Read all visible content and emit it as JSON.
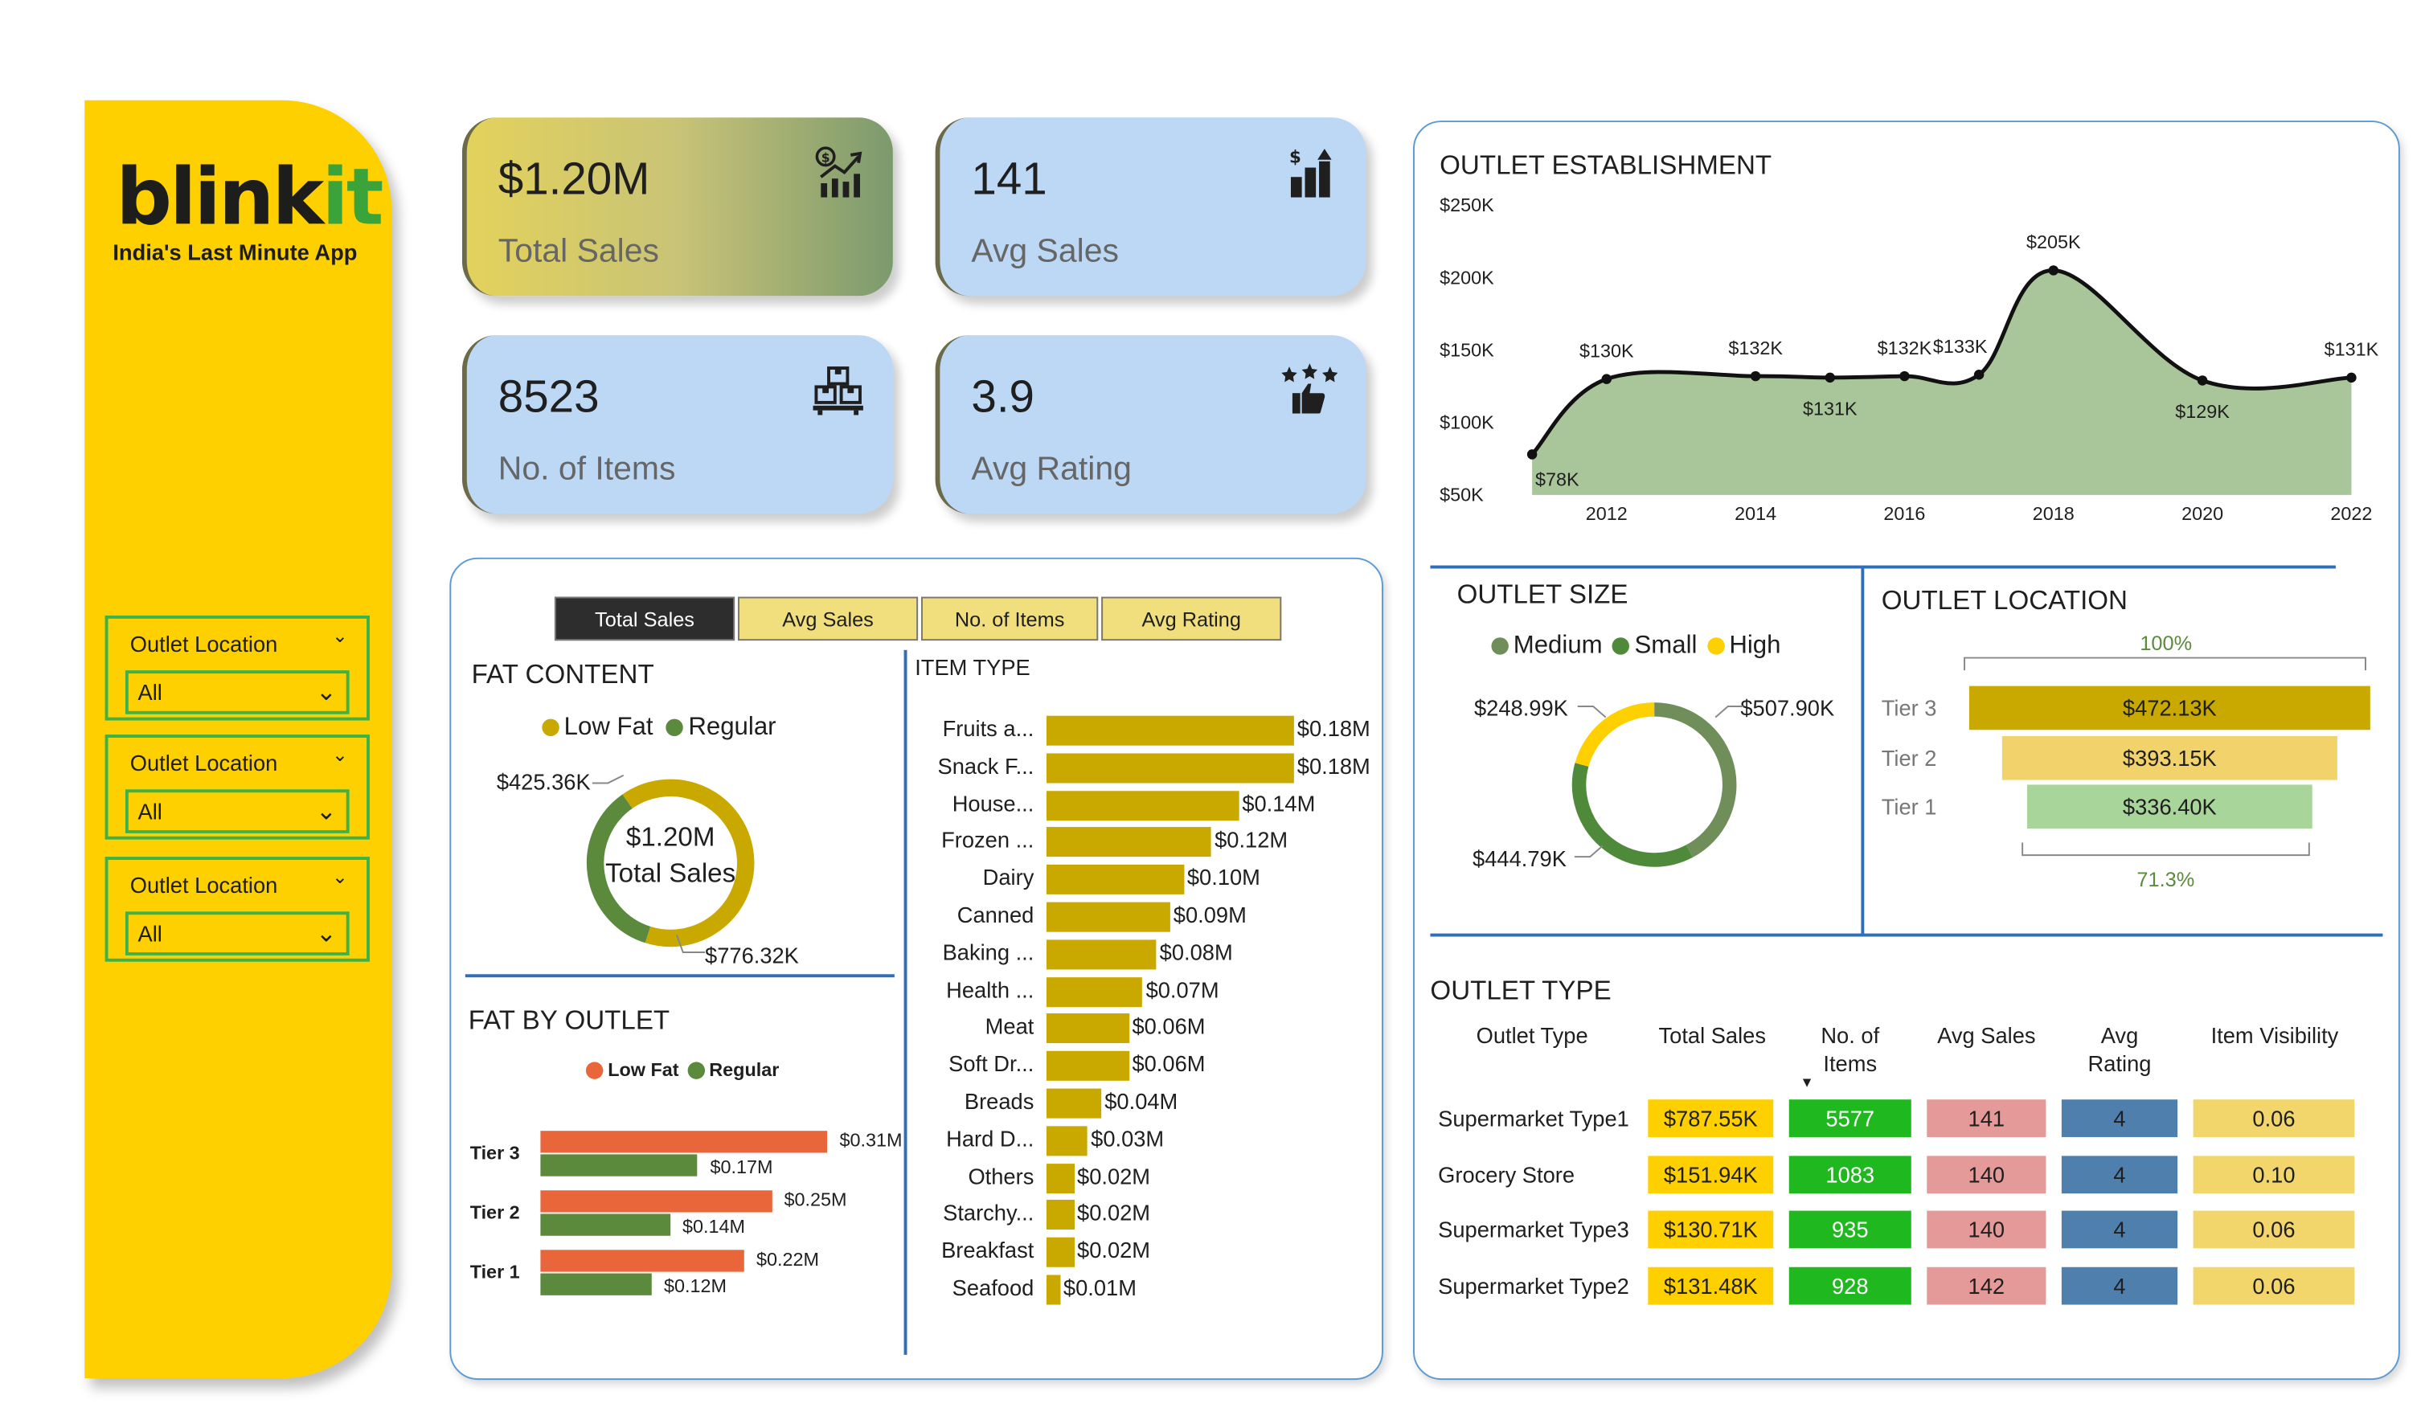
{
  "brand": {
    "logo_text_dark": "blink",
    "logo_text_green": "it",
    "tagline": "India's Last Minute App"
  },
  "slicers": [
    {
      "title": "Outlet Location",
      "value": "All"
    },
    {
      "title": "Outlet Location",
      "value": "All"
    },
    {
      "title": "Outlet Location",
      "value": "All"
    }
  ],
  "kpis": {
    "total_sales": {
      "value": "$1.20M",
      "label": "Total Sales",
      "icon": "sales-chart-icon"
    },
    "avg_sales": {
      "value": "141",
      "label": "Avg Sales",
      "icon": "growth-bars-icon"
    },
    "items": {
      "value": "8523",
      "label": "No. of Items",
      "icon": "boxes-icon"
    },
    "avg_rating": {
      "value": "3.9",
      "label": "Avg Rating",
      "icon": "thumbs-up-stars-icon"
    }
  },
  "tabs": [
    "Total Sales",
    "Avg Sales",
    "No. of Items",
    "Avg Rating"
  ],
  "fat_content": {
    "title": "FAT CONTENT",
    "legend": [
      "Low Fat",
      "Regular"
    ],
    "center_value": "$1.20M",
    "center_label": "Total Sales",
    "label_low_fat": "$776.32K",
    "label_regular": "$425.36K"
  },
  "fat_by_outlet": {
    "title": "FAT BY OUTLET",
    "legend": [
      "Low Fat",
      "Regular"
    ]
  },
  "item_type": {
    "title": "ITEM TYPE"
  },
  "outlet_establishment": {
    "title": "OUTLET ESTABLISHMENT"
  },
  "outlet_size": {
    "title": "OUTLET SIZE",
    "legend": [
      "Medium",
      "Small",
      "High"
    ],
    "label_high": "$248.99K",
    "label_medium": "$507.90K",
    "label_small": "$444.79K"
  },
  "outlet_location": {
    "title": "OUTLET LOCATION",
    "top_pct": "100%",
    "bottom_pct": "71.3%"
  },
  "outlet_type": {
    "title": "OUTLET TYPE",
    "headers": [
      "Outlet Type",
      "Total Sales",
      "No. of\nItems",
      "Avg Sales",
      "Avg\nRating",
      "Item Visibility"
    ],
    "rows": [
      {
        "name": "Supermarket Type1",
        "sales": "$787.55K",
        "items": "5577",
        "avg_sales": "141",
        "rating": "4",
        "visibility": "0.06"
      },
      {
        "name": "Grocery Store",
        "sales": "$151.94K",
        "items": "1083",
        "avg_sales": "140",
        "rating": "4",
        "visibility": "0.10"
      },
      {
        "name": "Supermarket Type3",
        "sales": "$130.71K",
        "items": "935",
        "avg_sales": "140",
        "rating": "4",
        "visibility": "0.06"
      },
      {
        "name": "Supermarket Type2",
        "sales": "$131.48K",
        "items": "928",
        "avg_sales": "142",
        "rating": "4",
        "visibility": "0.06"
      }
    ]
  },
  "colors": {
    "brand_yellow": "#ffd000",
    "low_fat": "#c9a800",
    "regular": "#5b8a3c",
    "tier_low_fat": "#e8663a",
    "tier_regular": "#5b8a3c",
    "medium": "#6f8e5a",
    "small": "#4f8a3a",
    "high": "#ffd000"
  },
  "chart_data": [
    {
      "type": "area",
      "title": "OUTLET ESTABLISHMENT",
      "x": [
        2011,
        2012,
        2014,
        2015,
        2016,
        2017,
        2018,
        2020,
        2022
      ],
      "values": [
        78,
        130,
        132,
        131,
        132,
        133,
        205,
        129,
        131
      ],
      "labels": [
        "$78K",
        "$130K",
        "$132K",
        "$131K",
        "$132K",
        "$133K",
        "$205K",
        "$129K",
        "$131K"
      ],
      "x_ticks": [
        "2012",
        "2014",
        "2016",
        "2018",
        "2020",
        "2022"
      ],
      "y_ticks": [
        "$50K",
        "$100K",
        "$150K",
        "$200K",
        "$250K"
      ],
      "ylim": [
        50,
        250
      ],
      "xlim": [
        2011,
        2022
      ]
    },
    {
      "type": "pie",
      "title": "FAT CONTENT",
      "categories": [
        "Low Fat",
        "Regular"
      ],
      "values": [
        776.32,
        425.36
      ]
    },
    {
      "type": "bar",
      "title": "FAT BY OUTLET",
      "categories": [
        "Tier 3",
        "Tier 2",
        "Tier 1"
      ],
      "series": [
        {
          "name": "Low Fat",
          "values": [
            0.31,
            0.25,
            0.22
          ],
          "labels": [
            "$0.31M",
            "$0.25M",
            "$0.22M"
          ]
        },
        {
          "name": "Regular",
          "values": [
            0.17,
            0.14,
            0.12
          ],
          "labels": [
            "$0.17M",
            "$0.14M",
            "$0.12M"
          ]
        }
      ]
    },
    {
      "type": "bar",
      "title": "ITEM TYPE",
      "categories": [
        "Fruits a...",
        "Snack F...",
        "House...",
        "Frozen ...",
        "Dairy",
        "Canned",
        "Baking ...",
        "Health ...",
        "Meat",
        "Soft Dr...",
        "Breads",
        "Hard D...",
        "Others",
        "Starchy...",
        "Breakfast",
        "Seafood"
      ],
      "values": [
        0.18,
        0.18,
        0.14,
        0.12,
        0.1,
        0.09,
        0.08,
        0.07,
        0.06,
        0.06,
        0.04,
        0.03,
        0.02,
        0.02,
        0.02,
        0.01
      ],
      "labels": [
        "$0.18M",
        "$0.18M",
        "$0.14M",
        "$0.12M",
        "$0.10M",
        "$0.09M",
        "$0.08M",
        "$0.07M",
        "$0.06M",
        "$0.06M",
        "$0.04M",
        "$0.03M",
        "$0.02M",
        "$0.02M",
        "$0.02M",
        "$0.01M"
      ]
    },
    {
      "type": "pie",
      "title": "OUTLET SIZE",
      "categories": [
        "Medium",
        "Small",
        "High"
      ],
      "values": [
        507.9,
        444.79,
        248.99
      ]
    },
    {
      "type": "bar",
      "title": "OUTLET LOCATION",
      "categories": [
        "Tier 3",
        "Tier 2",
        "Tier 1"
      ],
      "values": [
        472.13,
        393.15,
        336.4
      ],
      "labels": [
        "$472.13K",
        "$393.15K",
        "$336.40K"
      ]
    }
  ]
}
